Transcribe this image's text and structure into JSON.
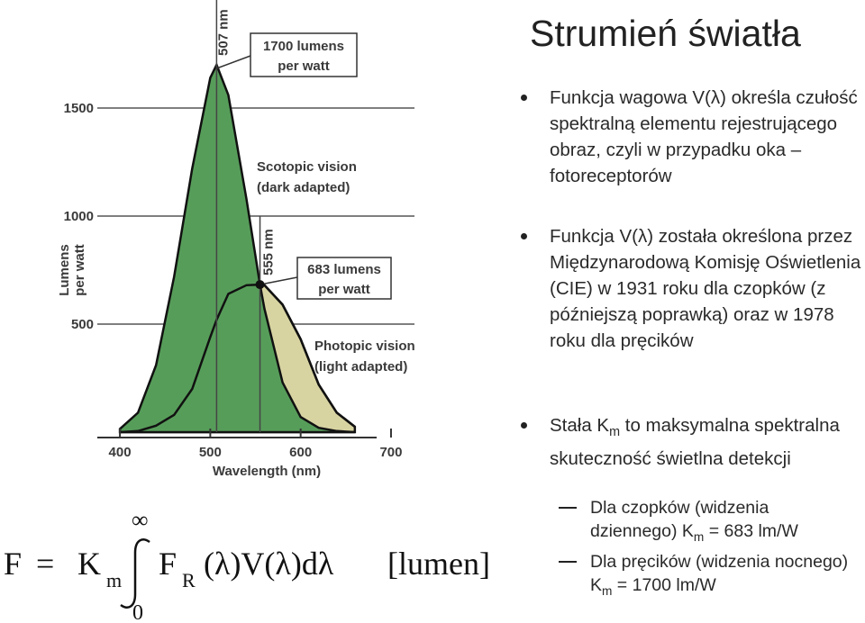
{
  "title": "Strumień światła",
  "chart_data": {
    "type": "area",
    "x": [
      400,
      420,
      440,
      460,
      480,
      500,
      507,
      520,
      540,
      555,
      560,
      580,
      600,
      620,
      640,
      660
    ],
    "series": [
      {
        "name": "Scotopic vision (dark adapted)",
        "color": "#579d5a",
        "values": [
          15,
          90,
          310,
          720,
          1220,
          1640,
          1700,
          1560,
          1080,
          683,
          570,
          230,
          70,
          20,
          5,
          0
        ]
      },
      {
        "name": "Photopic vision (light adapted)",
        "color": "#d8d4a2",
        "values": [
          0,
          5,
          30,
          80,
          200,
          440,
          520,
          640,
          680,
          683,
          680,
          590,
          430,
          220,
          90,
          25
        ]
      }
    ],
    "xlim": [
      375,
      715
    ],
    "ylim": [
      0,
      1800
    ],
    "xticks": [
      400,
      500,
      600,
      700
    ],
    "yticks": [
      500,
      1000,
      1500
    ],
    "xlabel": "Wavelength (nm)",
    "ylabel": [
      "Lumens",
      "per watt"
    ],
    "annotations": {
      "peak1_line": "507 nm",
      "peak1_value": [
        "1700 lumens",
        "per watt"
      ],
      "peak2_line": "555 nm",
      "peak2_value": [
        "683 lumens",
        "per watt"
      ],
      "scotopic": [
        "Scotopic vision",
        "(dark adapted)"
      ],
      "photopic": [
        "Photopic vision",
        "(light adapted)"
      ]
    }
  },
  "bullets": [
    {
      "text": "Funkcja wagowa V(λ) określa czułość spektralną elementu rejestrującego obraz, czyli w przypadku oka – fotoreceptorów"
    },
    {
      "text": "Funkcja V(λ) została określona przez Międzynarodową Komisję Oświetlenia (CIE) w 1931 roku dla czopków (z późniejszą poprawką) oraz w 1978 roku dla pręcików"
    },
    {
      "text": "Stała K",
      "sub": "m",
      "rest": " to maksymalna spektralna skuteczność świetlna detekcji"
    }
  ],
  "sub_bullets": [
    {
      "text": "Dla czopków (widzenia dziennego) K",
      "sub": "m",
      "rest": " = 683 lm/W"
    },
    {
      "text": "Dla pręcików (widzenia nocnego) K",
      "sub": "m",
      "rest": " = 1700 lm/W"
    }
  ],
  "formula": {
    "lhs": "F",
    "eq": "=",
    "k": "K",
    "k_sub": "m",
    "upper": "∞",
    "lower": "0",
    "f": "F",
    "f_sub": "R",
    "body": "(λ)V(λ)dλ",
    "unit": "[lumen]"
  }
}
